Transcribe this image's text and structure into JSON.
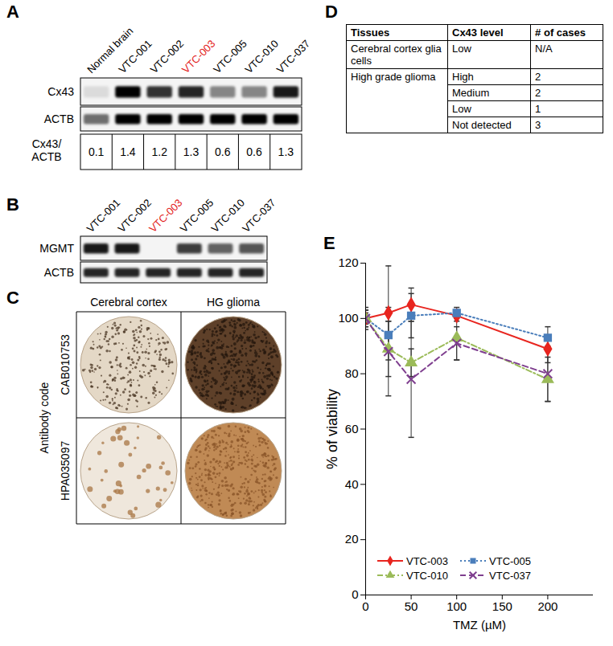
{
  "panel_a": {
    "letter": "A",
    "lanes": [
      "Normal brain",
      "VTC-001",
      "VTC-002",
      "VTC-003",
      "VTC-005",
      "VTC-010",
      "VTC-037"
    ],
    "highlight": {
      "lane": "VTC-003",
      "color": "#e31e24"
    },
    "blots": [
      {
        "name": "Cx43",
        "band_intensity": [
          0.1,
          1.0,
          0.8,
          0.85,
          0.45,
          0.45,
          0.9
        ]
      },
      {
        "name": "ACTB",
        "band_intensity": [
          0.55,
          1.0,
          1.0,
          1.0,
          1.0,
          1.0,
          1.0
        ]
      }
    ],
    "ratio": {
      "label_lines": [
        "Cx43/",
        "ACTB"
      ],
      "values": [
        0.1,
        1.4,
        1.2,
        1.3,
        0.6,
        0.6,
        1.3
      ]
    }
  },
  "panel_b": {
    "letter": "B",
    "lanes": [
      "VTC-001",
      "VTC-002",
      "VTC-003",
      "VTC-005",
      "VTC-010",
      "VTC-037"
    ],
    "highlight": {
      "lane": "VTC-003",
      "color": "#e31e24"
    },
    "blots": [
      {
        "name": "MGMT",
        "band_intensity": [
          0.9,
          0.9,
          0.0,
          0.75,
          0.6,
          0.65
        ]
      },
      {
        "name": "ACTB",
        "band_intensity": [
          0.85,
          0.85,
          0.85,
          0.85,
          0.85,
          0.85
        ]
      }
    ]
  },
  "panel_c": {
    "letter": "C",
    "columns": [
      "Cerebral cortex",
      "HG glioma"
    ],
    "rows": [
      "CAB010753",
      "HPA035097"
    ],
    "row_title": "Antibody code"
  },
  "panel_d": {
    "letter": "D",
    "table": {
      "header": [
        "Tissues",
        "Cx43 level",
        "# of cases"
      ],
      "groups": [
        {
          "tissue": "Cerebral cortex glia cells",
          "rows": [
            [
              "Low",
              "N/A"
            ]
          ]
        },
        {
          "tissue": "High grade glioma",
          "rows": [
            [
              "High",
              2
            ],
            [
              "Medium",
              2
            ],
            [
              "Low",
              1
            ],
            [
              "Not detected",
              3
            ]
          ]
        }
      ]
    }
  },
  "chart_data": {
    "panel": "E",
    "type": "line",
    "x_label": "TMZ (µM)",
    "y_label": "% of viability",
    "x": [
      0,
      25,
      50,
      100,
      200
    ],
    "xlim": [
      0,
      250
    ],
    "xticks": [
      0,
      50,
      100,
      150,
      200
    ],
    "ylim": [
      0,
      120
    ],
    "yticks": [
      0,
      20,
      40,
      60,
      80,
      100,
      120
    ],
    "grid": false,
    "legend": "bottom",
    "series": [
      {
        "name": "VTC-003",
        "color": "#e8251f",
        "marker": "diamond",
        "line_style": "solid",
        "values": [
          100,
          102,
          105,
          101,
          89
        ],
        "errors": [
          3,
          17,
          6,
          2,
          5
        ]
      },
      {
        "name": "VTC-005",
        "color": "#4a7ebb",
        "marker": "square",
        "line_style": "dotted",
        "values": [
          100,
          94,
          101,
          102,
          93
        ],
        "errors": [
          2,
          5,
          8,
          2,
          4
        ]
      },
      {
        "name": "VTC-010",
        "color": "#9bbb59",
        "marker": "triangle",
        "line_style": "dashdot",
        "values": [
          100,
          89,
          84,
          93,
          78
        ],
        "errors": [
          3,
          10,
          5,
          8,
          8
        ]
      },
      {
        "name": "VTC-037",
        "color": "#7f3f8f",
        "marker": "times",
        "line_style": "dashed",
        "values": [
          100,
          88,
          78,
          91,
          80
        ],
        "errors": [
          4,
          16,
          21,
          6,
          10
        ]
      }
    ]
  }
}
